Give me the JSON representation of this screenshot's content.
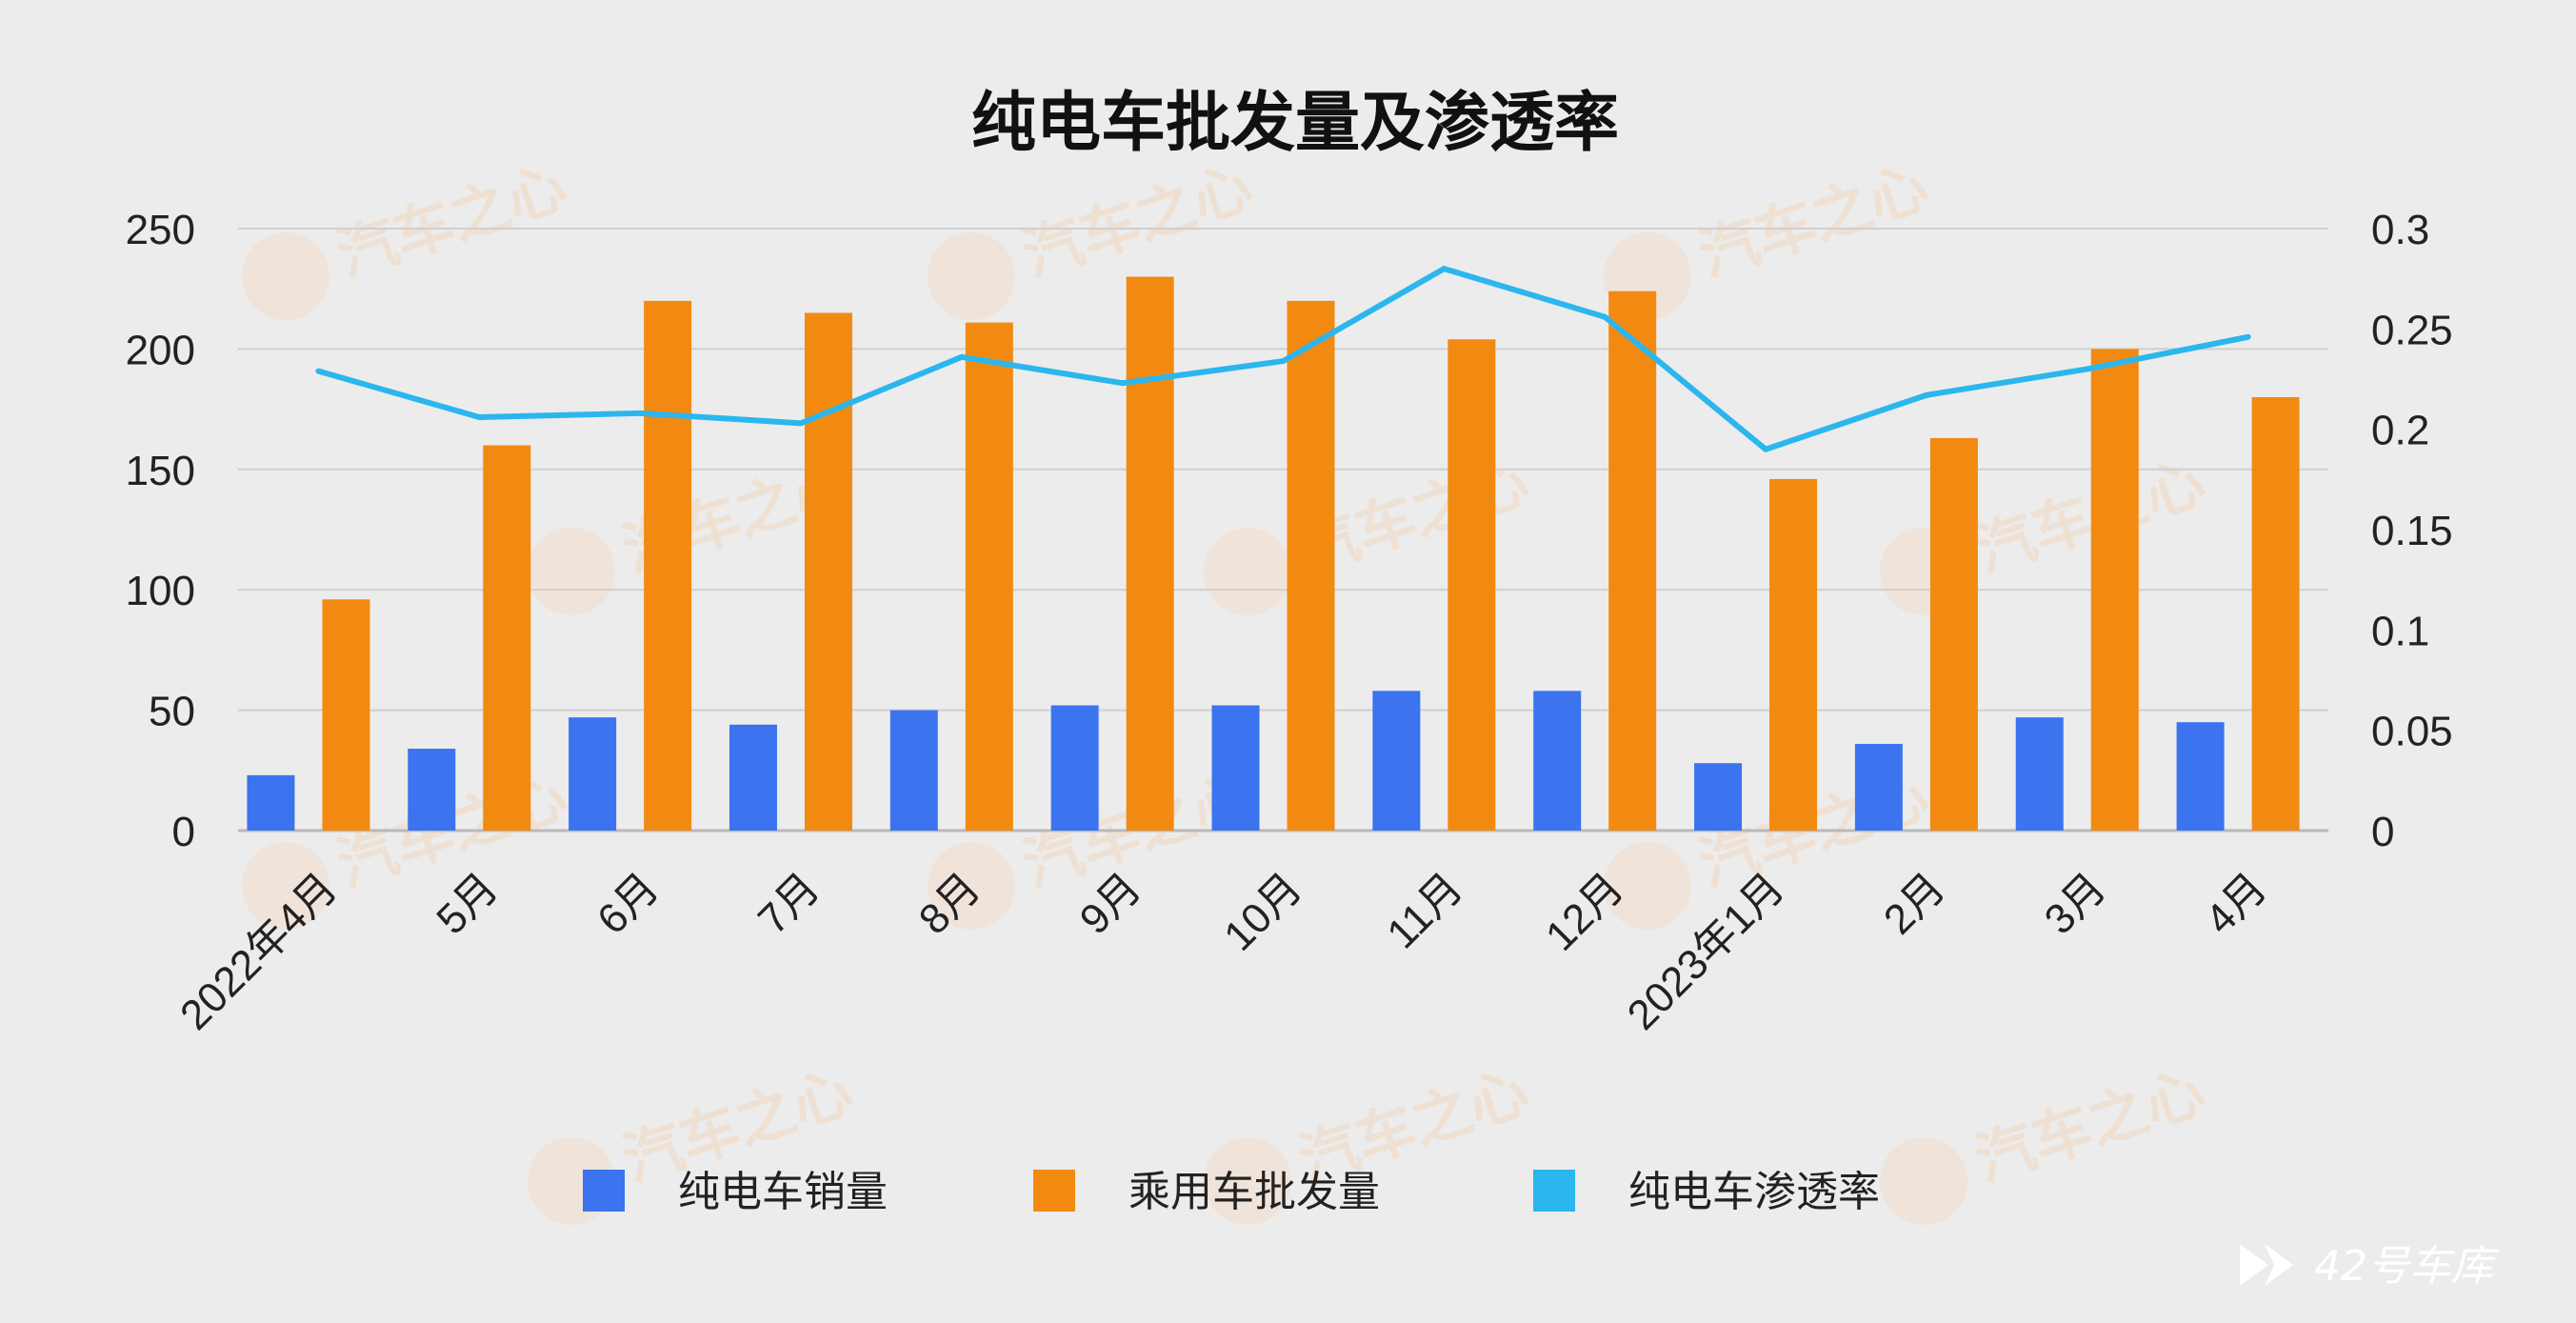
{
  "chart_data": {
    "type": "bar",
    "title": "纯电车批发量及渗透率",
    "categories": [
      "2022年4月",
      "5月",
      "6月",
      "7月",
      "8月",
      "9月",
      "10月",
      "11月",
      "12月",
      "2023年1月",
      "2月",
      "3月",
      "4月"
    ],
    "series": [
      {
        "name": "纯电车销量",
        "type": "bar",
        "axis": "left",
        "color": "#3b74ee",
        "values": [
          23,
          34,
          47,
          44,
          50,
          52,
          52,
          58,
          58,
          28,
          36,
          47,
          45
        ]
      },
      {
        "name": "乘用车批发量",
        "type": "bar",
        "axis": "left",
        "color": "#f28a12",
        "values": [
          96,
          160,
          220,
          215,
          211,
          230,
          220,
          204,
          224,
          146,
          163,
          200,
          180
        ]
      },
      {
        "name": "纯电车渗透率",
        "type": "line",
        "axis": "right",
        "color": "#2bb6ee",
        "values": [
          0.229,
          0.206,
          0.208,
          0.203,
          0.236,
          0.223,
          0.234,
          0.28,
          0.256,
          0.19,
          0.217,
          0.23,
          0.246
        ]
      }
    ],
    "yaxis_left": {
      "min": 0,
      "max": 250,
      "ticks": [
        "0",
        "50",
        "100",
        "150",
        "200",
        "250"
      ]
    },
    "yaxis_right": {
      "min": 0,
      "max": 0.3,
      "ticks": [
        "0",
        "0.05",
        "0.1",
        "0.15",
        "0.2",
        "0.25",
        "0.3"
      ]
    },
    "grid": true,
    "legend_position": "bottom"
  },
  "brand": {
    "name": "42号车库"
  },
  "watermark": {
    "text": "汽车之心"
  }
}
